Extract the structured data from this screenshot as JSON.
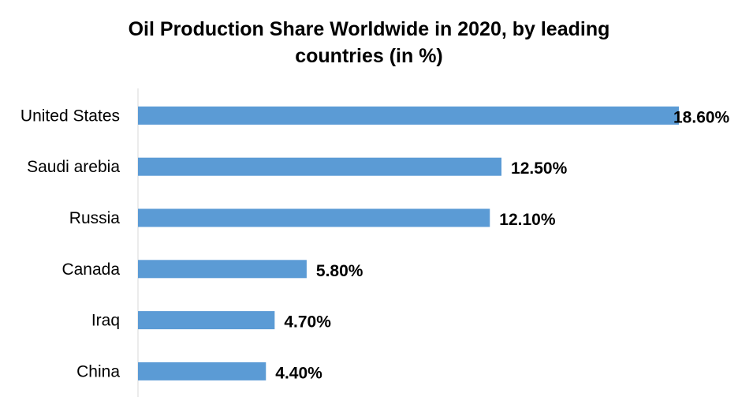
{
  "chart_data": {
    "type": "bar",
    "orientation": "horizontal",
    "title_line1": "Oil Production Share Worldwide in 2020, by leading",
    "title_line2": "countries (in %)",
    "categories": [
      "United States",
      "Saudi arebia",
      "Russia",
      "Canada",
      "Iraq",
      "China"
    ],
    "values": [
      18.6,
      12.5,
      12.1,
      5.8,
      4.7,
      4.4
    ],
    "value_labels": [
      "18.60%",
      "12.50%",
      "12.10%",
      "5.80%",
      "4.70%",
      "4.40%"
    ],
    "xlabel": "",
    "ylabel": "",
    "xlim": [
      0,
      18.6
    ],
    "grid": false,
    "legend": "none",
    "bar_color": "#5B9BD5"
  }
}
